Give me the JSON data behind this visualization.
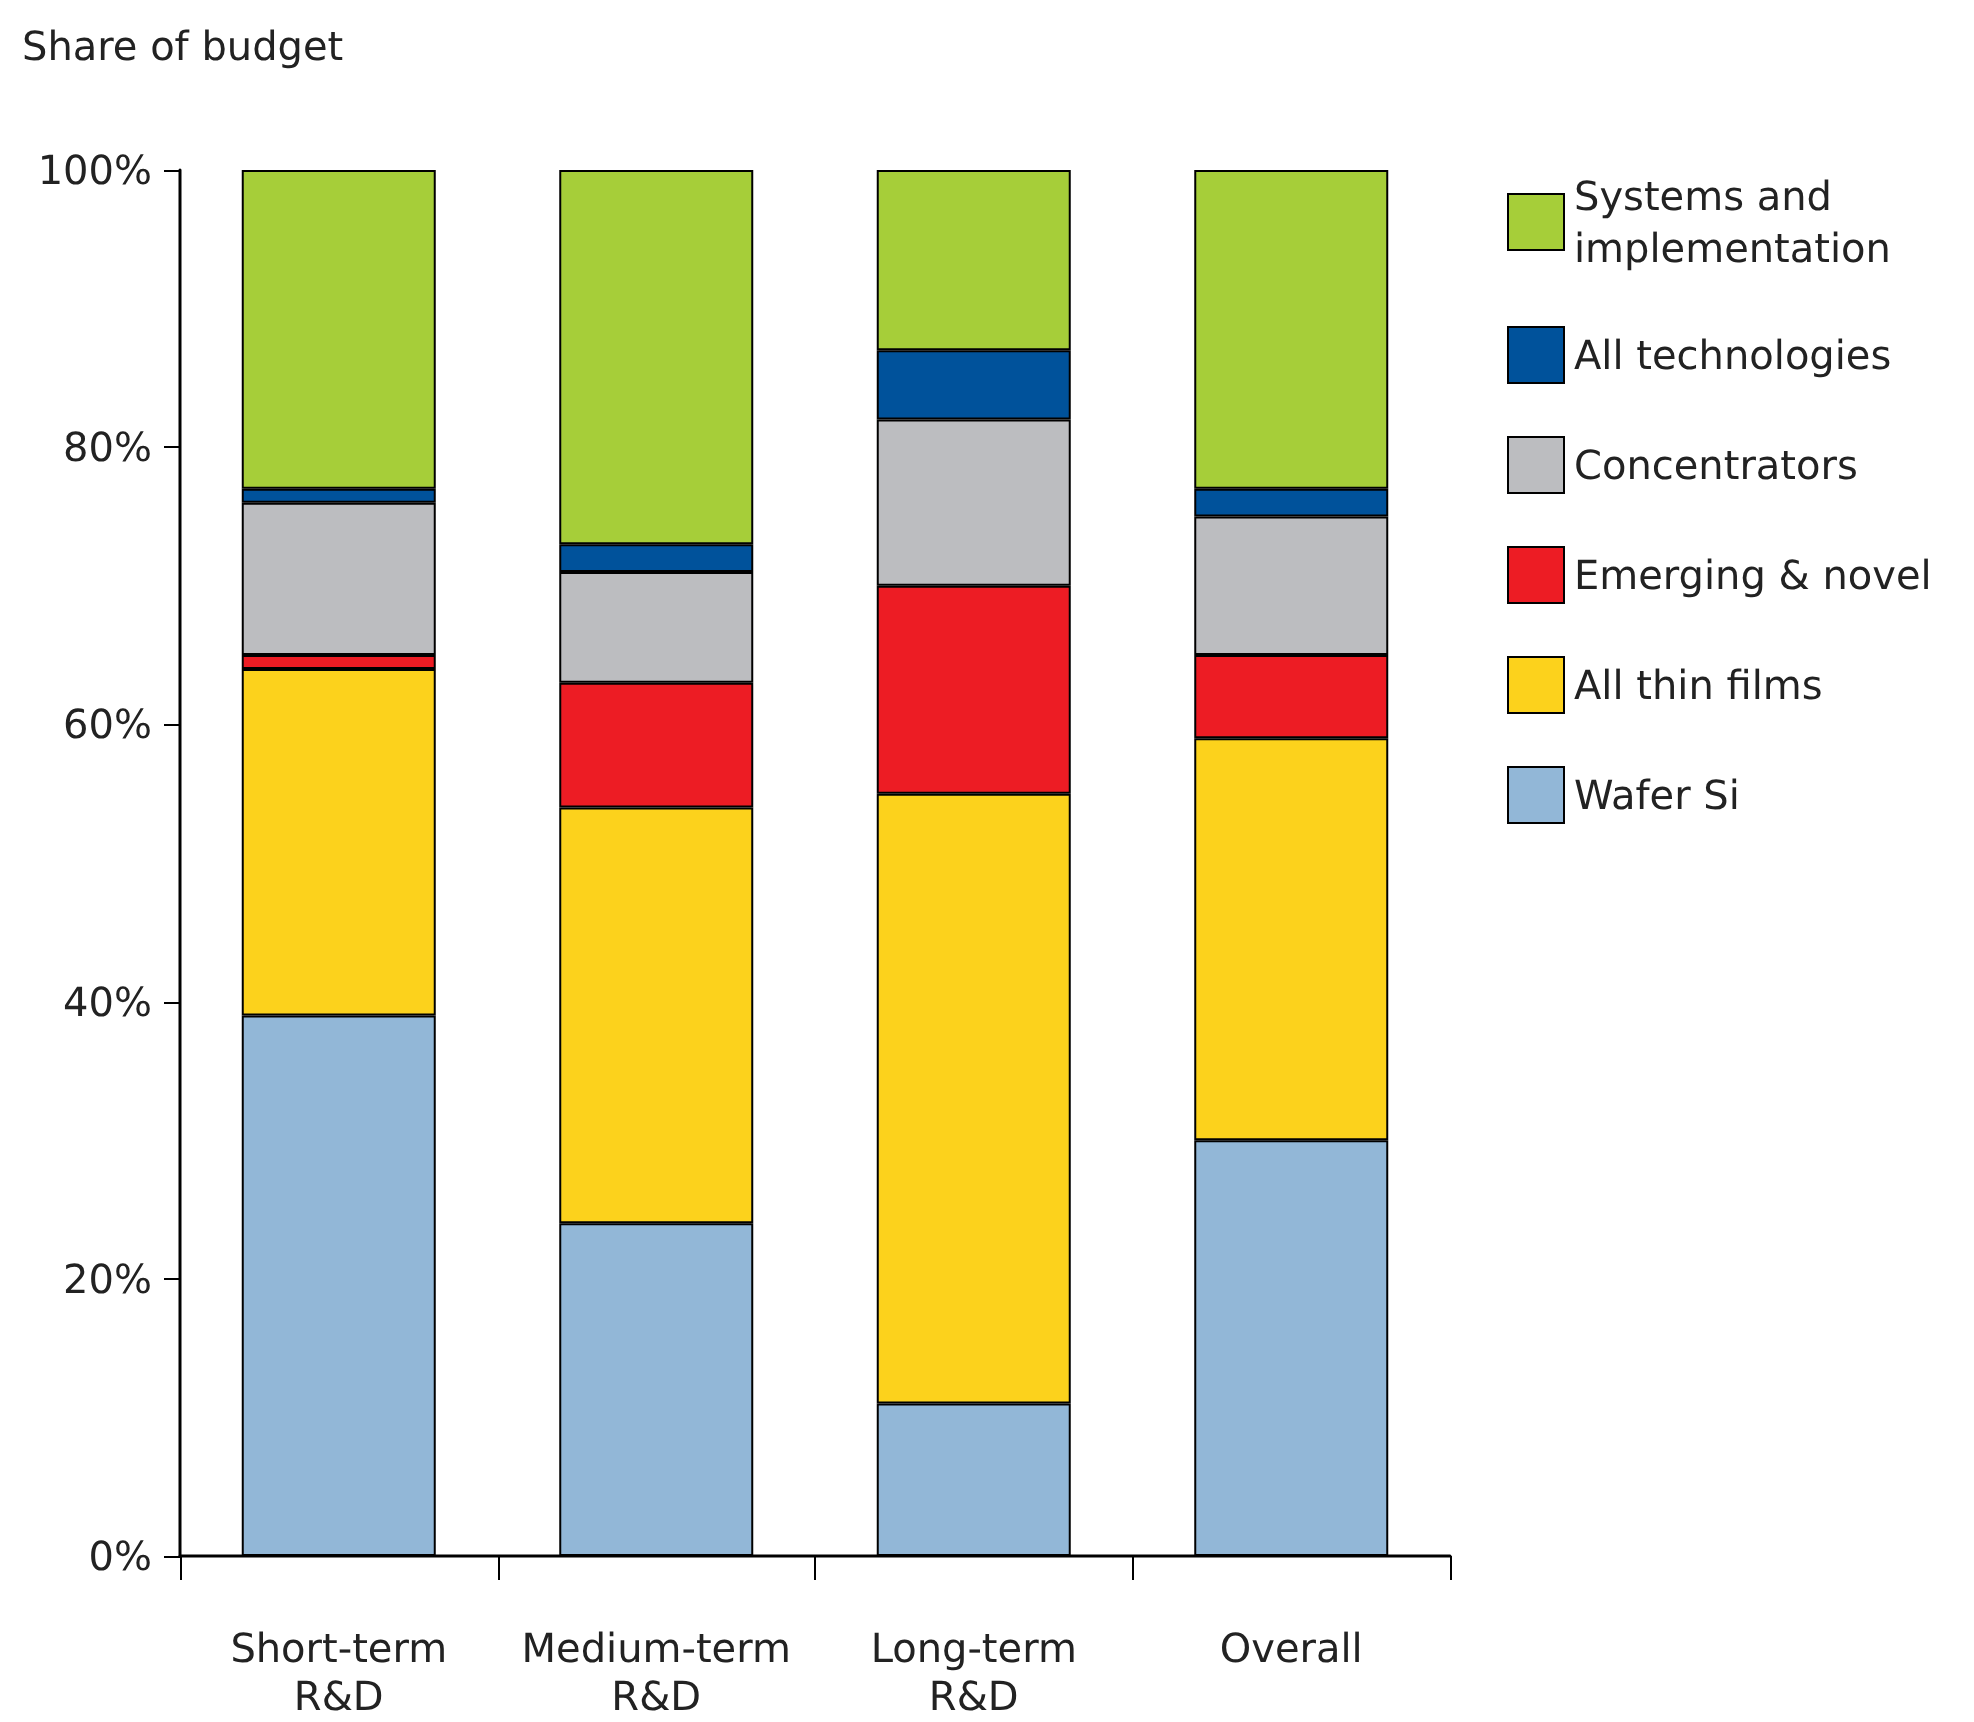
{
  "chart_data": {
    "type": "bar",
    "stacked": true,
    "ylabel": "Share of budget",
    "categories": [
      "Short-term R&D",
      "Medium-term R&D",
      "Long-term R&D",
      "Overall"
    ],
    "series": [
      {
        "name": "Wafer Si",
        "color": "#92b7d7",
        "values": [
          39,
          24,
          11,
          30
        ]
      },
      {
        "name": "All thin films",
        "color": "#fcd21c",
        "values": [
          25,
          30,
          44,
          29
        ]
      },
      {
        "name": "Emerging & novel",
        "color": "#ed1c24",
        "values": [
          1,
          9,
          15,
          6
        ]
      },
      {
        "name": "Concentrators",
        "color": "#bcbdc0",
        "values": [
          11,
          8,
          12,
          10
        ]
      },
      {
        "name": "All technologies",
        "color": "#00529b",
        "values": [
          1,
          2,
          5,
          2
        ]
      },
      {
        "name": "Systems and implementation",
        "color": "#a6ce39",
        "values": [
          23,
          27,
          13,
          23
        ]
      }
    ],
    "ylim": [
      0,
      100
    ],
    "yticks": [
      {
        "value": 0,
        "label": "0%"
      },
      {
        "value": 20,
        "label": "20%"
      },
      {
        "value": 40,
        "label": "40%"
      },
      {
        "value": 60,
        "label": "60%"
      },
      {
        "value": 80,
        "label": "80%"
      },
      {
        "value": 100,
        "label": "100%"
      }
    ],
    "grid": false,
    "legend": "right"
  }
}
